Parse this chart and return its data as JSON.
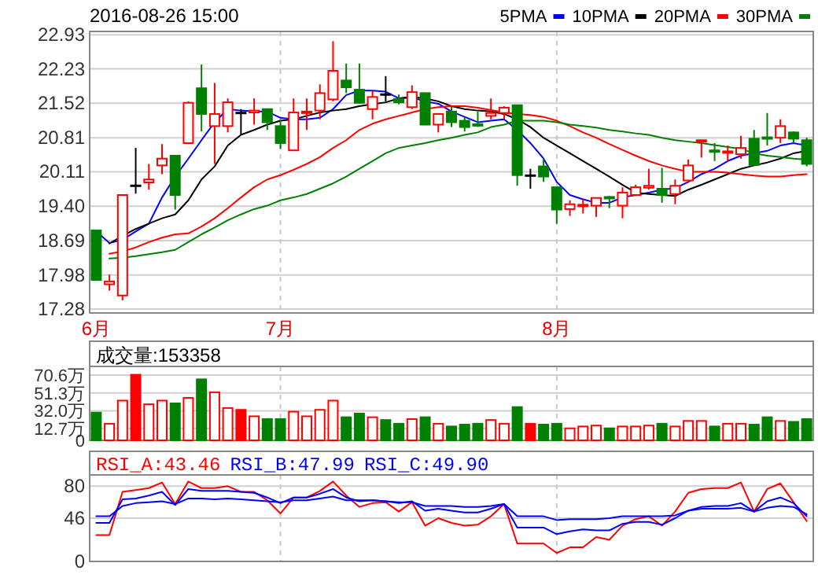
{
  "chart_data": [
    {
      "type": "candlestick",
      "title": "2016-08-26 15:00",
      "legend": "top right",
      "grid": true,
      "categories": [
        "6月",
        null,
        null,
        null,
        null,
        null,
        null,
        null,
        null,
        null,
        null,
        null,
        null,
        null,
        "7月",
        null,
        null,
        null,
        null,
        null,
        null,
        null,
        null,
        null,
        null,
        null,
        null,
        null,
        null,
        null,
        null,
        null,
        null,
        null,
        null,
        "8月",
        null,
        null,
        null,
        null,
        null,
        null,
        null,
        null,
        null,
        null,
        null,
        null,
        null,
        null,
        null,
        null,
        null,
        null,
        null
      ],
      "ylim": [
        17.2,
        23.0
      ],
      "yticks": [
        17.28,
        17.98,
        18.69,
        {
          "value": 19.4,
          "label": "19.40"
        },
        20.11,
        20.81,
        21.52,
        22.23,
        22.93
      ],
      "ohlc": [
        [
          18.9,
          18.9,
          17.88,
          17.88
        ],
        [
          17.79,
          17.99,
          17.66,
          17.85
        ],
        [
          17.56,
          19.63,
          17.46,
          19.63
        ],
        [
          19.82,
          20.6,
          19.66,
          19.82
        ],
        [
          19.89,
          20.27,
          19.74,
          19.95
        ],
        [
          20.24,
          20.68,
          20.06,
          20.38
        ],
        [
          20.44,
          20.44,
          19.33,
          19.63
        ],
        [
          20.7,
          21.56,
          20.68,
          21.53
        ],
        [
          21.83,
          22.32,
          20.94,
          21.3
        ],
        [
          21.05,
          21.94,
          20.27,
          21.3
        ],
        [
          21.05,
          21.62,
          20.92,
          21.54
        ],
        [
          21.32,
          21.4,
          20.87,
          21.32
        ],
        [
          21.33,
          21.62,
          21.08,
          21.37
        ],
        [
          21.4,
          21.4,
          20.97,
          21.13
        ],
        [
          21.05,
          21.19,
          20.58,
          20.7
        ],
        [
          20.55,
          21.62,
          20.54,
          21.33
        ],
        [
          21.32,
          21.62,
          20.97,
          21.35
        ],
        [
          21.37,
          21.91,
          21.19,
          21.73
        ],
        [
          21.6,
          22.8,
          21.56,
          22.19
        ],
        [
          21.99,
          22.34,
          21.73,
          21.85
        ],
        [
          21.8,
          22.34,
          21.51,
          21.53
        ],
        [
          21.4,
          21.78,
          21.19,
          21.65
        ],
        [
          21.7,
          22.08,
          21.56,
          21.7
        ],
        [
          21.61,
          21.7,
          21.5,
          21.54
        ],
        [
          21.44,
          21.89,
          21.4,
          21.75
        ],
        [
          21.73,
          21.73,
          21.08,
          21.08
        ],
        [
          21.08,
          21.3,
          20.92,
          21.3
        ],
        [
          21.35,
          21.46,
          21.03,
          21.13
        ],
        [
          21.16,
          21.24,
          20.94,
          21.03
        ],
        [
          21.09,
          21.35,
          21.03,
          21.06
        ],
        [
          21.26,
          21.62,
          21.19,
          21.32
        ],
        [
          21.32,
          21.46,
          21.19,
          21.43
        ],
        [
          21.48,
          21.48,
          19.82,
          20.04
        ],
        [
          20.03,
          20.17,
          19.76,
          20.03
        ],
        [
          20.22,
          20.38,
          19.9,
          20.01
        ],
        [
          19.79,
          19.79,
          19.04,
          19.33
        ],
        [
          19.34,
          19.52,
          19.2,
          19.44
        ],
        [
          19.4,
          19.54,
          19.25,
          19.43
        ],
        [
          19.41,
          19.57,
          19.18,
          19.57
        ],
        [
          19.59,
          19.61,
          19.36,
          19.57
        ],
        [
          19.41,
          19.79,
          19.15,
          19.68
        ],
        [
          19.63,
          19.84,
          19.61,
          19.79
        ],
        [
          19.78,
          20.17,
          19.74,
          19.82
        ],
        [
          19.76,
          20.19,
          19.47,
          19.63
        ],
        [
          19.65,
          19.95,
          19.44,
          19.82
        ],
        [
          19.93,
          20.36,
          19.9,
          20.24
        ],
        [
          20.73,
          20.76,
          20.4,
          20.76
        ],
        [
          20.55,
          20.7,
          20.33,
          20.52
        ],
        [
          20.5,
          20.65,
          20.33,
          20.53
        ],
        [
          20.47,
          20.85,
          20.38,
          20.6
        ],
        [
          20.79,
          20.97,
          20.25,
          20.25
        ],
        [
          20.82,
          21.32,
          20.65,
          20.8
        ],
        [
          20.81,
          21.19,
          20.7,
          21.05
        ],
        [
          20.92,
          20.94,
          20.7,
          20.79
        ],
        [
          20.76,
          20.81,
          20.22,
          20.27
        ]
      ],
      "colors": [
        "#008000",
        "#ff0000",
        "#ff0000",
        "#000000",
        "#ff0000",
        "#ff0000",
        "#008000",
        "#ff0000",
        "#008000",
        "#ff0000",
        "#ff0000",
        "#000000",
        "#ff0000",
        "#008000",
        "#008000",
        "#ff0000",
        "#ff0000",
        "#ff0000",
        "#ff0000",
        "#008000",
        "#008000",
        "#ff0000",
        "#000000",
        "#008000",
        "#ff0000",
        "#008000",
        "#ff0000",
        "#008000",
        "#008000",
        "#008000",
        "#ff0000",
        "#ff0000",
        "#008000",
        "#000000",
        "#008000",
        "#008000",
        "#ff0000",
        "#ff0000",
        "#ff0000",
        "#008000",
        "#ff0000",
        "#ff0000",
        "#ff0000",
        "#008000",
        "#ff0000",
        "#ff0000",
        "#ff0000",
        "#008000",
        "#ff0000",
        "#ff0000",
        "#008000",
        "#008000",
        "#ff0000",
        "#008000",
        "#008000"
      ],
      "series": [
        {
          "type": "line",
          "name": "5PMA",
          "color": "#0000ff",
          "values": [
            18.88,
            18.64,
            18.71,
            18.88,
            19.04,
            19.58,
            20.01,
            20.38,
            20.76,
            21.13,
            21.4,
            21.37,
            21.35,
            21.35,
            21.22,
            21.19,
            21.19,
            21.22,
            21.4,
            21.69,
            21.78,
            21.78,
            21.76,
            21.62,
            21.64,
            21.56,
            21.51,
            21.35,
            21.24,
            21.13,
            21.16,
            21.19,
            20.97,
            20.7,
            20.38,
            19.9,
            19.63,
            19.54,
            19.47,
            19.47,
            19.58,
            19.63,
            19.68,
            19.74,
            19.77,
            19.9,
            20.06,
            20.17,
            20.33,
            20.44,
            20.49,
            20.54,
            20.65,
            20.7,
            20.65
          ]
        },
        {
          "type": "line",
          "name": "10PMA",
          "color": "#000000",
          "values": [
            null,
            18.63,
            18.79,
            18.93,
            19.04,
            19.15,
            19.23,
            19.52,
            19.95,
            20.22,
            20.65,
            20.87,
            20.97,
            21.08,
            21.16,
            21.19,
            21.26,
            21.33,
            21.37,
            21.4,
            21.46,
            21.5,
            21.54,
            21.62,
            21.65,
            21.62,
            21.56,
            21.46,
            21.4,
            21.37,
            21.35,
            21.3,
            21.19,
            21.03,
            20.81,
            20.65,
            20.49,
            20.33,
            20.17,
            20.01,
            19.84,
            19.68,
            19.65,
            19.63,
            19.61,
            19.74,
            19.84,
            19.95,
            20.06,
            20.17,
            20.24,
            20.3,
            20.38,
            20.49,
            20.54
          ]
        },
        {
          "type": "line",
          "name": "20PMA",
          "color": "#ff0000",
          "values": [
            null,
            18.42,
            18.47,
            18.55,
            18.66,
            18.75,
            18.82,
            18.84,
            18.98,
            19.15,
            19.36,
            19.58,
            19.79,
            19.95,
            20.04,
            20.15,
            20.27,
            20.41,
            20.6,
            20.76,
            20.97,
            21.1,
            21.19,
            21.26,
            21.33,
            21.4,
            21.44,
            21.46,
            21.46,
            21.43,
            21.38,
            21.33,
            21.3,
            21.28,
            21.24,
            21.16,
            21.05,
            20.92,
            20.81,
            20.68,
            20.56,
            20.44,
            20.33,
            20.24,
            20.17,
            20.11,
            20.11,
            20.11,
            20.09,
            20.06,
            20.03,
            20.01,
            20.01,
            20.04,
            20.06
          ]
        },
        {
          "type": "line",
          "name": "30PMA",
          "color": "#008000",
          "values": [
            null,
            18.32,
            18.34,
            18.37,
            18.41,
            18.45,
            18.5,
            18.66,
            18.82,
            18.96,
            19.11,
            19.23,
            19.34,
            19.41,
            19.52,
            19.58,
            19.65,
            19.76,
            19.87,
            20.01,
            20.17,
            20.33,
            20.49,
            20.6,
            20.65,
            20.7,
            20.76,
            20.81,
            20.87,
            20.92,
            21.03,
            21.08,
            21.16,
            21.16,
            21.16,
            21.13,
            21.08,
            21.05,
            21.02,
            20.97,
            20.94,
            20.9,
            20.87,
            20.81,
            20.76,
            20.73,
            20.7,
            20.66,
            20.62,
            20.58,
            20.49,
            20.44,
            20.41,
            20.38,
            20.36
          ]
        }
      ]
    },
    {
      "type": "bar",
      "grid": true,
      "tick_labels": "y",
      "annotations": [
        "成交量:153358"
      ],
      "categories": [
        null,
        null,
        null,
        null,
        null,
        null,
        null,
        null,
        null,
        null,
        null,
        null,
        null,
        null,
        null,
        null,
        null,
        null,
        null,
        null,
        null,
        null,
        null,
        null,
        null,
        null,
        null,
        null,
        null,
        null,
        null,
        null,
        null,
        null,
        null,
        null,
        null,
        null,
        null,
        null,
        null,
        null,
        null,
        null,
        null,
        null,
        null,
        null,
        null,
        null,
        null,
        null,
        null,
        null,
        null
      ],
      "ylim": [
        0,
        80
      ],
      "yticks": [
        0,
        {
          "value": 12.7,
          "label": "12.7万"
        },
        {
          "value": 32.0,
          "label": "32.0万"
        },
        {
          "value": 51.3,
          "label": "51.3万"
        },
        {
          "value": 70.6,
          "label": "70.6万"
        }
      ],
      "values": [
        30,
        18,
        43,
        71,
        39,
        43,
        40,
        46,
        66,
        52,
        35,
        33,
        26,
        23,
        23,
        31,
        26,
        33,
        43,
        25,
        29,
        25,
        22,
        18,
        23,
        25,
        18,
        15,
        17,
        18,
        22,
        18,
        36,
        18,
        17,
        18,
        13,
        15,
        16,
        13,
        15,
        15,
        16,
        18,
        15,
        21,
        21,
        15,
        18,
        18,
        17,
        25,
        21,
        20,
        23
      ],
      "colors": [
        "#008000",
        "#ff0000",
        "#ff0000",
        "#ff0000",
        "#ff0000",
        "#ff0000",
        "#008000",
        "#ff0000",
        "#008000",
        "#ff0000",
        "#ff0000",
        "#ff0000",
        "#ff0000",
        "#008000",
        "#008000",
        "#ff0000",
        "#ff0000",
        "#ff0000",
        "#ff0000",
        "#008000",
        "#008000",
        "#ff0000",
        "#008000",
        "#008000",
        "#ff0000",
        "#008000",
        "#ff0000",
        "#008000",
        "#008000",
        "#008000",
        "#ff0000",
        "#ff0000",
        "#008000",
        "#ff0000",
        "#008000",
        "#008000",
        "#ff0000",
        "#ff0000",
        "#ff0000",
        "#008000",
        "#ff0000",
        "#ff0000",
        "#ff0000",
        "#008000",
        "#ff0000",
        "#ff0000",
        "#ff0000",
        "#008000",
        "#ff0000",
        "#ff0000",
        "#008000",
        "#008000",
        "#ff0000",
        "#008000",
        "#008000"
      ]
    },
    {
      "type": "line",
      "grid": true,
      "tick_labels": "y",
      "legend": "top left",
      "categories": [
        null,
        null,
        null,
        null,
        null,
        null,
        null,
        null,
        null,
        null,
        null,
        null,
        null,
        null,
        null,
        null,
        null,
        null,
        null,
        null,
        null,
        null,
        null,
        null,
        null,
        null,
        null,
        null,
        null,
        null,
        null,
        null,
        null,
        null,
        null,
        null,
        null,
        null,
        null,
        null,
        null,
        null,
        null,
        null,
        null,
        null,
        null,
        null,
        null,
        null,
        null,
        null,
        null,
        null,
        null
      ],
      "ylim": [
        0,
        92
      ],
      "yticks": [
        0,
        46,
        80
      ],
      "series": [
        {
          "name": "RSI_A:43.46",
          "color": "#ff0000",
          "values": [
            28,
            28,
            74,
            76,
            78,
            84,
            61,
            85,
            78,
            78,
            80,
            74,
            74,
            65,
            51,
            68,
            68,
            75,
            85,
            70,
            58,
            62,
            63,
            53,
            63,
            38,
            46,
            41,
            38,
            39,
            48,
            61,
            19,
            19,
            19,
            9,
            15,
            15,
            26,
            23,
            38,
            45,
            48,
            38,
            53,
            73,
            77,
            78,
            78,
            84,
            53,
            77,
            83,
            63,
            43
          ]
        },
        {
          "name": "RSI_B:47.99",
          "color": "#0000ff",
          "values": [
            41,
            41,
            66,
            67,
            70,
            74,
            60,
            77,
            75,
            75,
            75,
            74,
            73,
            68,
            62,
            68,
            68,
            72,
            77,
            68,
            64,
            65,
            64,
            62,
            64,
            54,
            56,
            54,
            52,
            52,
            56,
            61,
            36,
            36,
            36,
            29,
            32,
            34,
            33,
            33,
            40,
            42,
            42,
            39,
            46,
            54,
            58,
            59,
            59,
            62,
            53,
            64,
            68,
            62,
            48
          ]
        },
        {
          "name": "RSI_C:49.90",
          "color": "#0000ff",
          "values": [
            48,
            48,
            59,
            62,
            63,
            64,
            61,
            67,
            67,
            66,
            67,
            66,
            65,
            64,
            63,
            65,
            65,
            67,
            69,
            65,
            65,
            65,
            64,
            63,
            63,
            59,
            59,
            59,
            58,
            58,
            59,
            61,
            48,
            48,
            48,
            44,
            45,
            45,
            45,
            46,
            48,
            48,
            48,
            48,
            49,
            54,
            56,
            56,
            56,
            57,
            53,
            57,
            59,
            58,
            50
          ]
        }
      ]
    }
  ]
}
